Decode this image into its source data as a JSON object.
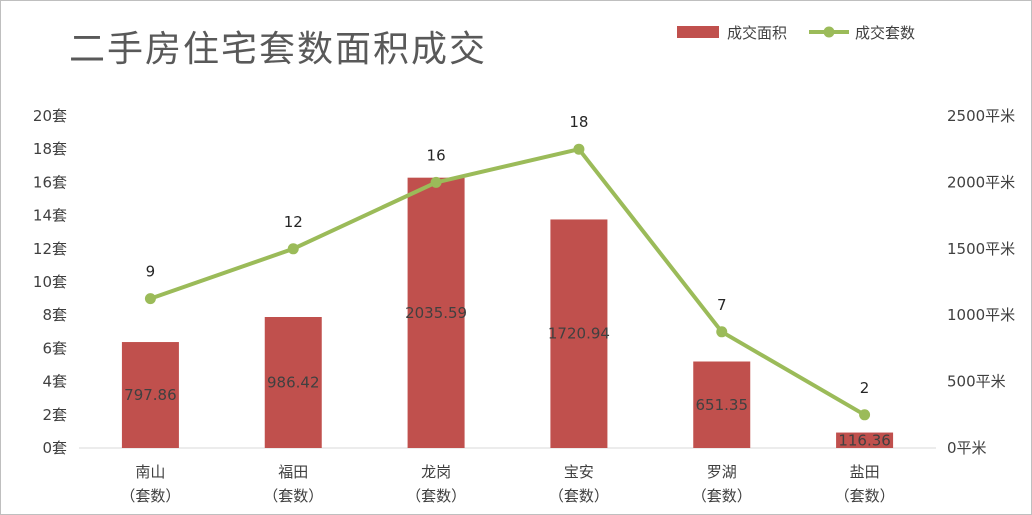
{
  "chart_data": {
    "type": "bar",
    "title": "二手房住宅套数面积成交",
    "categories": [
      [
        "南山",
        "（套数）"
      ],
      [
        "福田",
        "（套数）"
      ],
      [
        "龙岗",
        "（套数）"
      ],
      [
        "宝安",
        "（套数）"
      ],
      [
        "罗湖",
        "（套数）"
      ],
      [
        "盐田",
        "（套数）"
      ]
    ],
    "series": [
      {
        "name": "成交面积",
        "kind": "bar",
        "axis": "right",
        "color": "#c0504d",
        "values": [
          797.86,
          986.42,
          2035.59,
          1720.94,
          651.35,
          116.36
        ],
        "labels": [
          "797.86",
          "986.42",
          "2035.59",
          "1720.94",
          "651.35",
          "116.36"
        ]
      },
      {
        "name": "成交套数",
        "kind": "line",
        "axis": "left",
        "color": "#9bbb59",
        "values": [
          9,
          12,
          16,
          18,
          7,
          2
        ],
        "labels": [
          "9",
          "12",
          "16",
          "18",
          "7",
          "2"
        ]
      }
    ],
    "y_left": {
      "ylim": [
        0,
        20
      ],
      "ticks": [
        0,
        2,
        4,
        6,
        8,
        10,
        12,
        14,
        16,
        18,
        20
      ],
      "tick_labels": [
        "0套",
        "2套",
        "4套",
        "6套",
        "8套",
        "10套",
        "12套",
        "14套",
        "16套",
        "18套",
        "20套"
      ]
    },
    "y_right": {
      "ylim": [
        0,
        2500
      ],
      "ticks": [
        0,
        500,
        1000,
        1500,
        2000,
        2500
      ],
      "tick_labels": [
        "0平米",
        "500平米",
        "1000平米",
        "1500平米",
        "2000平米",
        "2500平米"
      ]
    },
    "legend": {
      "placement": "top-right"
    },
    "grid": false
  }
}
